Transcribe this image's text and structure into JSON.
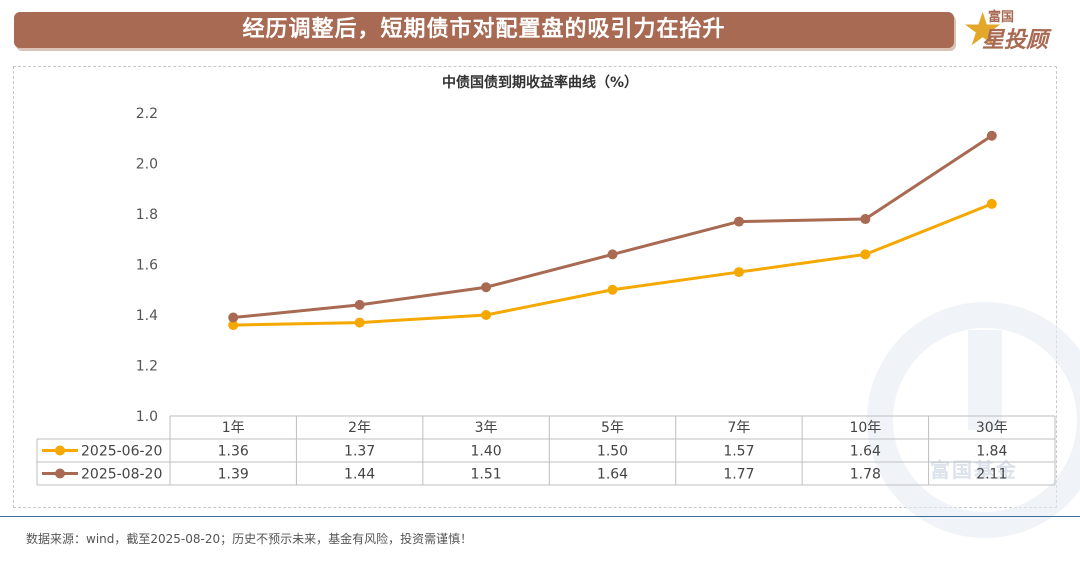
{
  "header": {
    "title": "经历调整后，短期债市对配置盘的吸引力在抬升"
  },
  "logo": {
    "top": "富国",
    "main": "星投顾"
  },
  "watermark": "富国基金",
  "footer": {
    "text": "数据来源：wind，截至2025-08-20；历史不预示未来，基金有风险，投资需谨慎！"
  },
  "chart_data": {
    "type": "line",
    "title": "中债国债到期收益率曲线（%）",
    "categories": [
      "1年",
      "2年",
      "3年",
      "5年",
      "7年",
      "10年",
      "30年"
    ],
    "series": [
      {
        "name": "2025-06-20",
        "color": "#f5a800",
        "values": [
          1.36,
          1.37,
          1.4,
          1.5,
          1.57,
          1.64,
          1.84
        ]
      },
      {
        "name": "2025-08-20",
        "color": "#a86a52",
        "values": [
          1.39,
          1.44,
          1.51,
          1.64,
          1.77,
          1.78,
          2.11
        ]
      }
    ],
    "ylim": [
      1.0,
      2.2
    ],
    "yticks": [
      "1.0",
      "1.2",
      "1.4",
      "1.6",
      "1.8",
      "2.0",
      "2.2"
    ],
    "table_values": [
      [
        "1.36",
        "1.37",
        "1.40",
        "1.50",
        "1.57",
        "1.64",
        "1.84"
      ],
      [
        "1.39",
        "1.44",
        "1.51",
        "1.64",
        "1.77",
        "1.78",
        "2.11"
      ]
    ],
    "grid": false,
    "legend": "data-table"
  }
}
